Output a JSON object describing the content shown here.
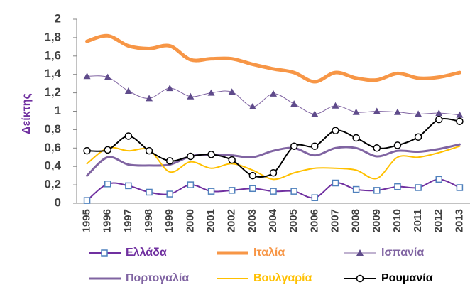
{
  "chart_data": {
    "type": "line",
    "y_label": "Δείκτης",
    "categories": [
      "1995",
      "1996",
      "1997",
      "1998",
      "1999",
      "2000",
      "2001",
      "2002",
      "2003",
      "2004",
      "2005",
      "2006",
      "2007",
      "2008",
      "2009",
      "2010",
      "2011",
      "2012",
      "2013"
    ],
    "ylim": [
      0,
      2
    ],
    "yticks": [
      0,
      {
        "value": 0.2,
        "label": "0,2"
      },
      {
        "value": 0.4,
        "label": "0,4"
      },
      {
        "value": 0.6,
        "label": "0,6"
      },
      {
        "value": 0.8,
        "label": "0,8"
      },
      1,
      {
        "value": 1.2,
        "label": "1,2"
      },
      {
        "value": 1.4,
        "label": "1,4"
      },
      {
        "value": 1.6,
        "label": "1,6"
      },
      {
        "value": 1.8,
        "label": "1,8"
      },
      2
    ],
    "grid": false,
    "legend": "bottom",
    "series": [
      {
        "name": "Ελλάδα",
        "color": "#7030a0",
        "marker": "square",
        "marker_color": "#4f81bd",
        "line_width": 2,
        "values": [
          0.03,
          0.21,
          0.19,
          0.12,
          0.1,
          0.2,
          0.13,
          0.14,
          0.16,
          0.13,
          0.13,
          0.06,
          0.22,
          0.15,
          0.14,
          0.18,
          0.17,
          0.26,
          0.17
        ]
      },
      {
        "name": "Ιταλία",
        "color": "#f79646",
        "marker": "none",
        "line_width": 5,
        "values": [
          1.76,
          1.82,
          1.71,
          1.68,
          1.71,
          1.56,
          1.57,
          1.57,
          1.51,
          1.46,
          1.42,
          1.32,
          1.42,
          1.36,
          1.34,
          1.41,
          1.36,
          1.37,
          1.42
        ]
      },
      {
        "name": "Ισπανία",
        "color": "#8064a2",
        "marker": "triangle",
        "marker_color": "#5f4b8b",
        "line_width": 1,
        "values": [
          1.38,
          1.37,
          1.22,
          1.14,
          1.25,
          1.16,
          1.2,
          1.21,
          1.05,
          1.19,
          1.08,
          0.97,
          1.06,
          0.99,
          1.0,
          0.99,
          0.97,
          0.98,
          0.96
        ]
      },
      {
        "name": "Πορτογαλία",
        "color": "#8064a2",
        "marker": "none",
        "line_width": 3,
        "values": [
          0.3,
          0.5,
          0.42,
          0.41,
          0.42,
          0.51,
          0.53,
          0.52,
          0.5,
          0.57,
          0.6,
          0.52,
          0.6,
          0.6,
          0.51,
          0.57,
          0.56,
          0.59,
          0.64
        ]
      },
      {
        "name": "Βουλγαρία",
        "color": "#ffc000",
        "marker": "none",
        "line_width": 2,
        "values": [
          0.43,
          0.6,
          0.57,
          0.58,
          0.34,
          0.45,
          0.38,
          0.43,
          0.36,
          0.26,
          0.33,
          0.38,
          0.38,
          0.36,
          0.27,
          0.5,
          0.5,
          0.55,
          0.62
        ]
      },
      {
        "name": "Ρουμανία",
        "color": "#000000",
        "marker": "circle",
        "marker_color": "#000000",
        "line_width": 2,
        "values": [
          0.57,
          0.58,
          0.73,
          0.57,
          0.46,
          0.51,
          0.53,
          0.47,
          0.3,
          0.33,
          0.62,
          0.62,
          0.79,
          0.71,
          0.6,
          0.63,
          0.72,
          0.91,
          0.89
        ]
      }
    ]
  }
}
